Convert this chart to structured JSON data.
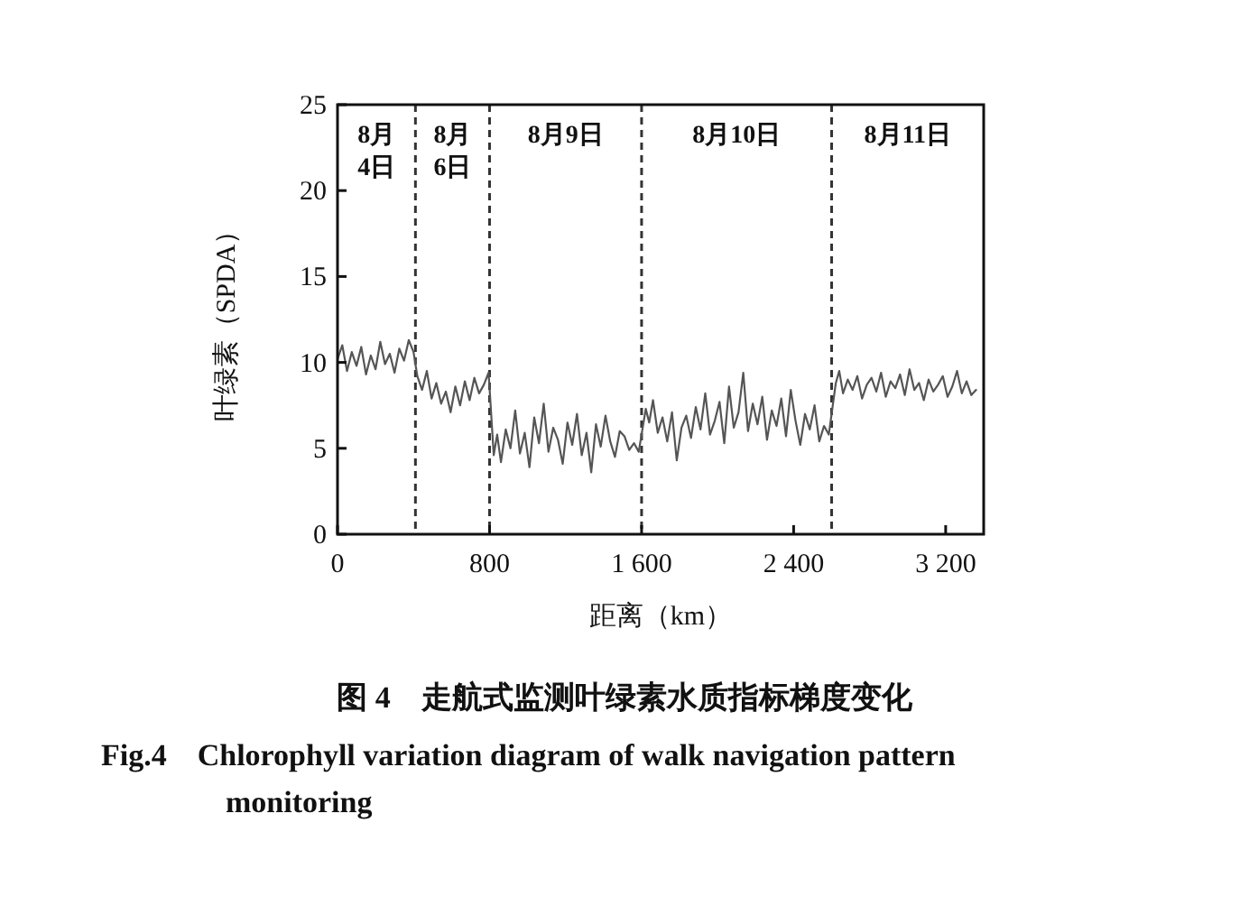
{
  "chart_data": {
    "type": "line",
    "title": "图 4　走航式监测叶绿素水质指标梯度变化",
    "subtitle": "Fig.4　Chlorophyll variation diagram of walk navigation pattern monitoring",
    "xlabel": "距离（km）",
    "ylabel": "叶绿素（SPDA）",
    "xlim": [
      0,
      3400
    ],
    "xticks": [
      0,
      800,
      {
        "value": 1600,
        "label": "1 600"
      },
      {
        "value": 2400,
        "label": "2 400"
      },
      {
        "value": 3200,
        "label": "3 200"
      }
    ],
    "ylim": [
      0,
      25
    ],
    "yticks": [
      0,
      5,
      10,
      15,
      20,
      25
    ],
    "grid": false,
    "marker": "none",
    "line_style": "solid",
    "ref_lines": [
      {
        "axis": "x",
        "value": 410,
        "line_style": "dashed",
        "color": "#333333"
      },
      {
        "axis": "x",
        "value": 800,
        "line_style": "dashed",
        "color": "#333333"
      },
      {
        "axis": "x",
        "value": 1600,
        "line_style": "dashed",
        "color": "#333333"
      },
      {
        "axis": "x",
        "value": 2600,
        "line_style": "dashed",
        "color": "#333333"
      }
    ],
    "annotations": [
      "8月\n4日",
      "8月\n6日",
      "8月9日",
      "8月10日",
      "8月11日"
    ],
    "series": [
      {
        "color": "#555555",
        "x": [
          0,
          25,
          50,
          75,
          100,
          125,
          150,
          175,
          200,
          225,
          250,
          275,
          300,
          325,
          350,
          375,
          400,
          420,
          445,
          470,
          495,
          520,
          545,
          570,
          595,
          620,
          645,
          670,
          695,
          720,
          745,
          770,
          795,
          822,
          840,
          860,
          885,
          910,
          935,
          960,
          985,
          1010,
          1035,
          1060,
          1085,
          1110,
          1135,
          1160,
          1185,
          1210,
          1235,
          1260,
          1285,
          1310,
          1335,
          1360,
          1385,
          1410,
          1435,
          1460,
          1485,
          1510,
          1535,
          1560,
          1585,
          1622,
          1640,
          1660,
          1685,
          1710,
          1735,
          1760,
          1785,
          1810,
          1835,
          1860,
          1885,
          1910,
          1935,
          1960,
          1985,
          2010,
          2035,
          2060,
          2085,
          2110,
          2135,
          2160,
          2185,
          2210,
          2235,
          2260,
          2285,
          2310,
          2335,
          2360,
          2385,
          2410,
          2435,
          2460,
          2485,
          2510,
          2535,
          2560,
          2585,
          2622,
          2640,
          2660,
          2685,
          2710,
          2735,
          2760,
          2785,
          2810,
          2835,
          2860,
          2885,
          2910,
          2935,
          2960,
          2985,
          3010,
          3035,
          3060,
          3085,
          3110,
          3135,
          3160,
          3185,
          3210,
          3235,
          3260,
          3285,
          3310,
          3335,
          3360
        ],
        "values": [
          10.2,
          11,
          9.5,
          10.6,
          9.8,
          10.9,
          9.3,
          10.4,
          9.6,
          11.2,
          9.9,
          10.5,
          9.4,
          10.8,
          10.1,
          11.3,
          10.6,
          9.2,
          8.4,
          9.5,
          7.9,
          8.8,
          7.6,
          8.3,
          7.1,
          8.6,
          7.5,
          8.9,
          7.8,
          9.1,
          8.2,
          8.7,
          9.4,
          4.6,
          5.8,
          4.2,
          6.1,
          5.0,
          7.2,
          4.7,
          5.9,
          3.9,
          6.8,
          5.3,
          7.6,
          4.8,
          6.2,
          5.5,
          4.1,
          6.5,
          5.2,
          7.0,
          4.6,
          5.9,
          3.6,
          6.4,
          5.1,
          6.9,
          5.4,
          4.5,
          6.0,
          5.7,
          4.9,
          5.3,
          4.8,
          7.3,
          6.5,
          7.8,
          5.9,
          6.8,
          5.4,
          7.1,
          4.3,
          6.2,
          6.9,
          5.6,
          7.4,
          6.1,
          8.2,
          5.8,
          6.6,
          7.7,
          5.3,
          8.6,
          6.2,
          7.1,
          9.4,
          6.0,
          7.6,
          6.4,
          8.0,
          5.5,
          7.2,
          6.3,
          7.9,
          5.7,
          8.4,
          6.6,
          5.2,
          7.0,
          6.1,
          7.5,
          5.4,
          6.3,
          5.8,
          8.8,
          9.5,
          8.2,
          9.0,
          8.4,
          9.2,
          7.9,
          8.7,
          9.1,
          8.3,
          9.4,
          8.0,
          8.9,
          8.5,
          9.3,
          8.1,
          9.6,
          8.4,
          8.8,
          7.8,
          9.0,
          8.3,
          8.7,
          9.2,
          8.0,
          8.6,
          9.5,
          8.2,
          8.9,
          8.1,
          8.4
        ]
      }
    ]
  }
}
